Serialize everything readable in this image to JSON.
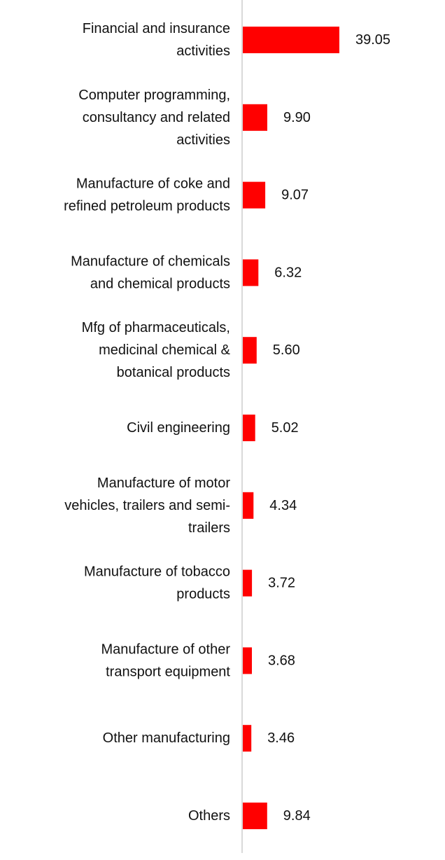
{
  "chart_data": {
    "type": "bar",
    "orientation": "horizontal",
    "categories": [
      [
        "Financial and insurance",
        "activities"
      ],
      [
        "Computer programming,",
        "consultancy and related",
        "activities"
      ],
      [
        "Manufacture of coke and",
        "refined petroleum products"
      ],
      [
        "Manufacture of chemicals",
        "and chemical products"
      ],
      [
        "Mfg of pharmaceuticals,",
        "medicinal chemical &",
        "botanical products"
      ],
      [
        "Civil engineering"
      ],
      [
        "Manufacture of motor",
        "vehicles, trailers and semi-",
        "trailers"
      ],
      [
        "Manufacture of tobacco",
        "products"
      ],
      [
        "Manufacture of other",
        "transport equipment"
      ],
      [
        "Other manufacturing"
      ],
      [
        "Others"
      ]
    ],
    "values": [
      39.05,
      9.9,
      9.07,
      6.32,
      5.6,
      5.02,
      4.34,
      3.72,
      3.68,
      3.46,
      9.84
    ],
    "value_labels": [
      "39.05",
      "9.90",
      "9.07",
      "6.32",
      "5.60",
      "5.02",
      "4.34",
      "3.72",
      "3.68",
      "3.46",
      "9.84"
    ],
    "title": "",
    "xlabel": "",
    "ylabel": "",
    "xlim": [
      0,
      39.05
    ],
    "grid": false,
    "legend": "none",
    "colors": {
      "bar": "#ff0000",
      "axis": "#d9d9d9",
      "text": "#111111"
    }
  }
}
